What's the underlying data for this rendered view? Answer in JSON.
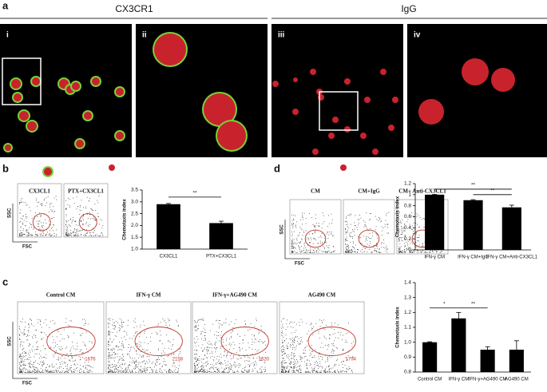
{
  "panel_a": {
    "letter": "a",
    "groups": [
      "CX3CR1",
      "IgG"
    ],
    "panels": [
      "i",
      "ii",
      "iii",
      "iv"
    ]
  },
  "panel_b": {
    "letter": "b",
    "flow_labels": [
      "CX3CL1",
      "PTX+CX3CL1"
    ],
    "y_axis": "SSC",
    "x_axis": "FSC"
  },
  "panel_d": {
    "letter": "d",
    "flow_labels": [
      "CM",
      "CM+IgG",
      "CM+ Anti-CX3CL1"
    ],
    "y_axis": "SSC",
    "x_axis": "FSC"
  },
  "panel_c": {
    "letter": "c",
    "flow_labels": [
      "Control CM",
      "IFN-γ CM",
      "IFN-γ+AG490 CM",
      "AG490 CM"
    ],
    "counts": [
      1676,
      2158,
      1620,
      1794
    ],
    "y_axis": "SSC",
    "x_axis": "FSC"
  },
  "chart_data": [
    {
      "type": "bar",
      "ylabel": "Chemotaxis index",
      "categories": [
        "CX3CL1",
        "PTX+CX3CL1"
      ],
      "values": [
        2.9,
        2.1
      ],
      "errors": [
        0.03,
        0.08
      ],
      "color": "#000000",
      "ylim": [
        1.0,
        3.5
      ],
      "yticks": [
        {
          "value": 1.0,
          "label": "1.0"
        },
        {
          "value": 1.5,
          "label": "1.5"
        },
        {
          "value": 2.0,
          "label": "2.0"
        },
        {
          "value": 2.5,
          "label": "2.5"
        },
        {
          "value": 3.0,
          "label": "3.0"
        },
        {
          "value": 3.5,
          "label": "3.5"
        }
      ],
      "annotations": [
        "**"
      ]
    },
    {
      "type": "bar",
      "ylabel": "Chemotaxis index",
      "categories": [
        "IFN-γ CM",
        "IFN-γ CM+IgG",
        "IFN-γ CM+Anti-CX3CL1"
      ],
      "values": [
        1.0,
        0.9,
        0.77
      ],
      "errors": [
        0.005,
        0.01,
        0.04
      ],
      "color": "#000000",
      "ylim": [
        0,
        1.2
      ],
      "yticks": [
        0,
        0.2,
        0.4,
        0.6,
        0.8,
        1,
        1.2
      ],
      "annotations": [
        "**",
        "**"
      ]
    },
    {
      "type": "bar",
      "ylabel": "Chemotaxis index",
      "categories": [
        "Control CM",
        "IFN-γ CM",
        "IFN-γ+AG490 CM",
        "AG490 CM"
      ],
      "values": [
        1.0,
        1.16,
        0.95,
        0.95
      ],
      "errors": [
        0.003,
        0.04,
        0.02,
        0.06
      ],
      "color": "#000000",
      "ylim": [
        0.8,
        1.4
      ],
      "yticks": [
        0.8,
        0.9,
        {
          "value": 1.0,
          "label": "1.0"
        },
        1.1,
        1.2,
        1.3,
        1.4
      ],
      "annotations": [
        "*",
        "**"
      ]
    }
  ]
}
